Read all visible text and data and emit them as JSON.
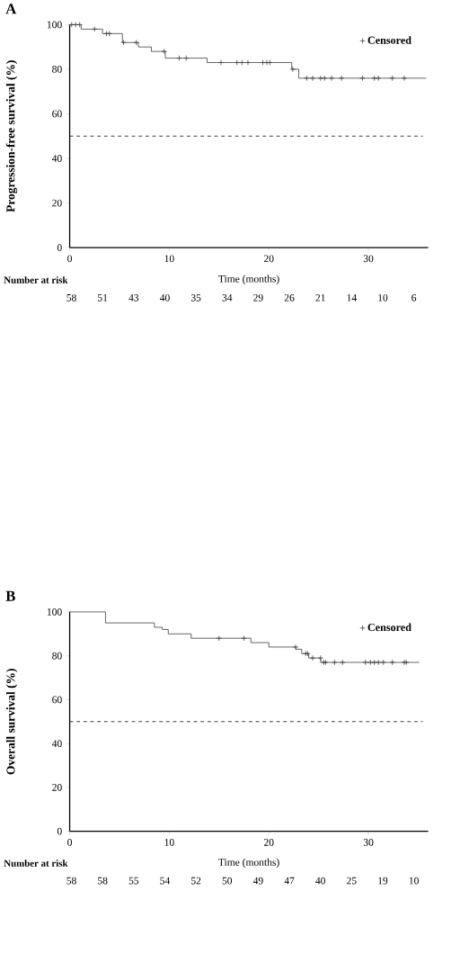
{
  "chart_data": [
    {
      "type": "line",
      "title": "A",
      "xlabel": "Time (months)",
      "ylabel": "Progression-free survival (%)",
      "xlim": [
        0,
        36
      ],
      "xticks": [
        0,
        10,
        20,
        30
      ],
      "ylim": [
        0,
        100
      ],
      "yticks": [
        0,
        20,
        40,
        60,
        80,
        100
      ],
      "legend": "top right",
      "series": [
        {
          "type": "step",
          "color": "#3a3a3a",
          "marker": "none",
          "x": [
            0,
            1.15,
            3.3,
            5.3,
            6.9,
            8.2,
            9.6,
            13.8,
            22.3,
            23.0,
            35.8
          ],
          "values": [
            100,
            98,
            96,
            92,
            90,
            88,
            85,
            83,
            80,
            76,
            76
          ]
        },
        {
          "type": "scatter",
          "name": "Censored",
          "color": "#3a3a3a",
          "marker": "cross",
          "x": [
            0.2,
            0.6,
            1.0,
            2.5,
            3.7,
            4.0,
            5.4,
            6.7,
            9.5,
            11.0,
            11.7,
            15.2,
            16.8,
            17.3,
            17.9,
            19.4,
            19.8,
            20.1,
            22.4,
            23.8,
            24.4,
            25.2,
            25.6,
            26.3,
            27.3,
            29.4,
            30.6,
            31.0,
            32.4,
            33.6
          ],
          "values": [
            100,
            100,
            100,
            98,
            96,
            96,
            92,
            92,
            88,
            85,
            85,
            83,
            83,
            83,
            83,
            83,
            83,
            83,
            80,
            76,
            76,
            76,
            76,
            76,
            76,
            76,
            76,
            76,
            76,
            76
          ]
        }
      ],
      "ref_lines": [
        {
          "axis": "y",
          "value": 50,
          "line_style": "dashed",
          "color": "#000000"
        }
      ],
      "annotations": [
        "Number at risk",
        "58",
        "51",
        "43",
        "40",
        "35",
        "34",
        "29",
        "26",
        "21",
        "14",
        "10",
        "6"
      ]
    },
    {
      "type": "line",
      "title": "B",
      "xlabel": "Time (months)",
      "ylabel": "Overall survival (%)",
      "xlim": [
        0,
        36
      ],
      "xticks": [
        0,
        10,
        20,
        30
      ],
      "ylim": [
        0,
        100
      ],
      "yticks": [
        0,
        20,
        40,
        60,
        80,
        100
      ],
      "legend": "top right",
      "series": [
        {
          "type": "step",
          "color": "#3a3a3a",
          "marker": "none",
          "x": [
            0,
            3.6,
            8.5,
            9.3,
            9.9,
            12.2,
            18.2,
            20.0,
            22.7,
            23.3,
            24.0,
            25.2,
            35.1
          ],
          "values": [
            100,
            95,
            93,
            92,
            90,
            88,
            86,
            84,
            83,
            81,
            79,
            77,
            77
          ]
        },
        {
          "type": "scatter",
          "name": "Censored",
          "color": "#3a3a3a",
          "marker": "cross",
          "x": [
            15.0,
            17.5,
            22.7,
            23.7,
            23.9,
            24.4,
            25.2,
            25.5,
            25.7,
            26.6,
            27.4,
            29.7,
            30.2,
            30.6,
            31.0,
            31.5,
            32.4,
            33.6,
            33.8
          ],
          "values": [
            88,
            88,
            84,
            81,
            81,
            79,
            79,
            77,
            77,
            77,
            77,
            77,
            77,
            77,
            77,
            77,
            77,
            77,
            77
          ]
        }
      ],
      "ref_lines": [
        {
          "axis": "y",
          "value": 50,
          "line_style": "dashed",
          "color": "#000000"
        }
      ],
      "annotations": [
        "Number at risk",
        "58",
        "58",
        "55",
        "54",
        "52",
        "50",
        "49",
        "47",
        "40",
        "25",
        "19",
        "10"
      ]
    }
  ]
}
